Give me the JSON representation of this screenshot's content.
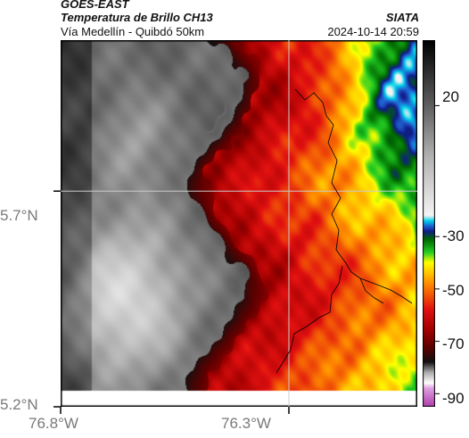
{
  "header": {
    "satellite": "GOES-EAST",
    "product": "Temperatura de Brillo CH13",
    "region": "Vía Medellín - Quibdó 50km",
    "org": "SIATA",
    "datetime": "2024-10-14 20:59"
  },
  "map": {
    "lat_labels": [
      "5.7°N",
      "5.2°N"
    ],
    "lon_labels": [
      "76.8°W",
      "76.3°W"
    ],
    "lat_range": [
      5.2,
      6.05
    ],
    "lon_range": [
      -76.8,
      -76.05
    ],
    "gridline_lat": 5.7,
    "gridline_lon": -76.3
  },
  "colorbar": {
    "labels": [
      "20",
      "-30",
      "-50",
      "-70",
      "-90"
    ],
    "values": [
      20,
      -30,
      -50,
      -70,
      -90
    ],
    "range": [
      -95,
      45
    ],
    "colors": {
      "warm": "#ffffff",
      "gray": "#8a8a8a",
      "dark": "#111111",
      "red": "#e01010",
      "orange": "#ff8c00",
      "yellow": "#ffff00",
      "green": "#22cc22",
      "blue": "#101c88",
      "cyan": "#00cfe8",
      "magenta": "#b040b0"
    }
  }
}
